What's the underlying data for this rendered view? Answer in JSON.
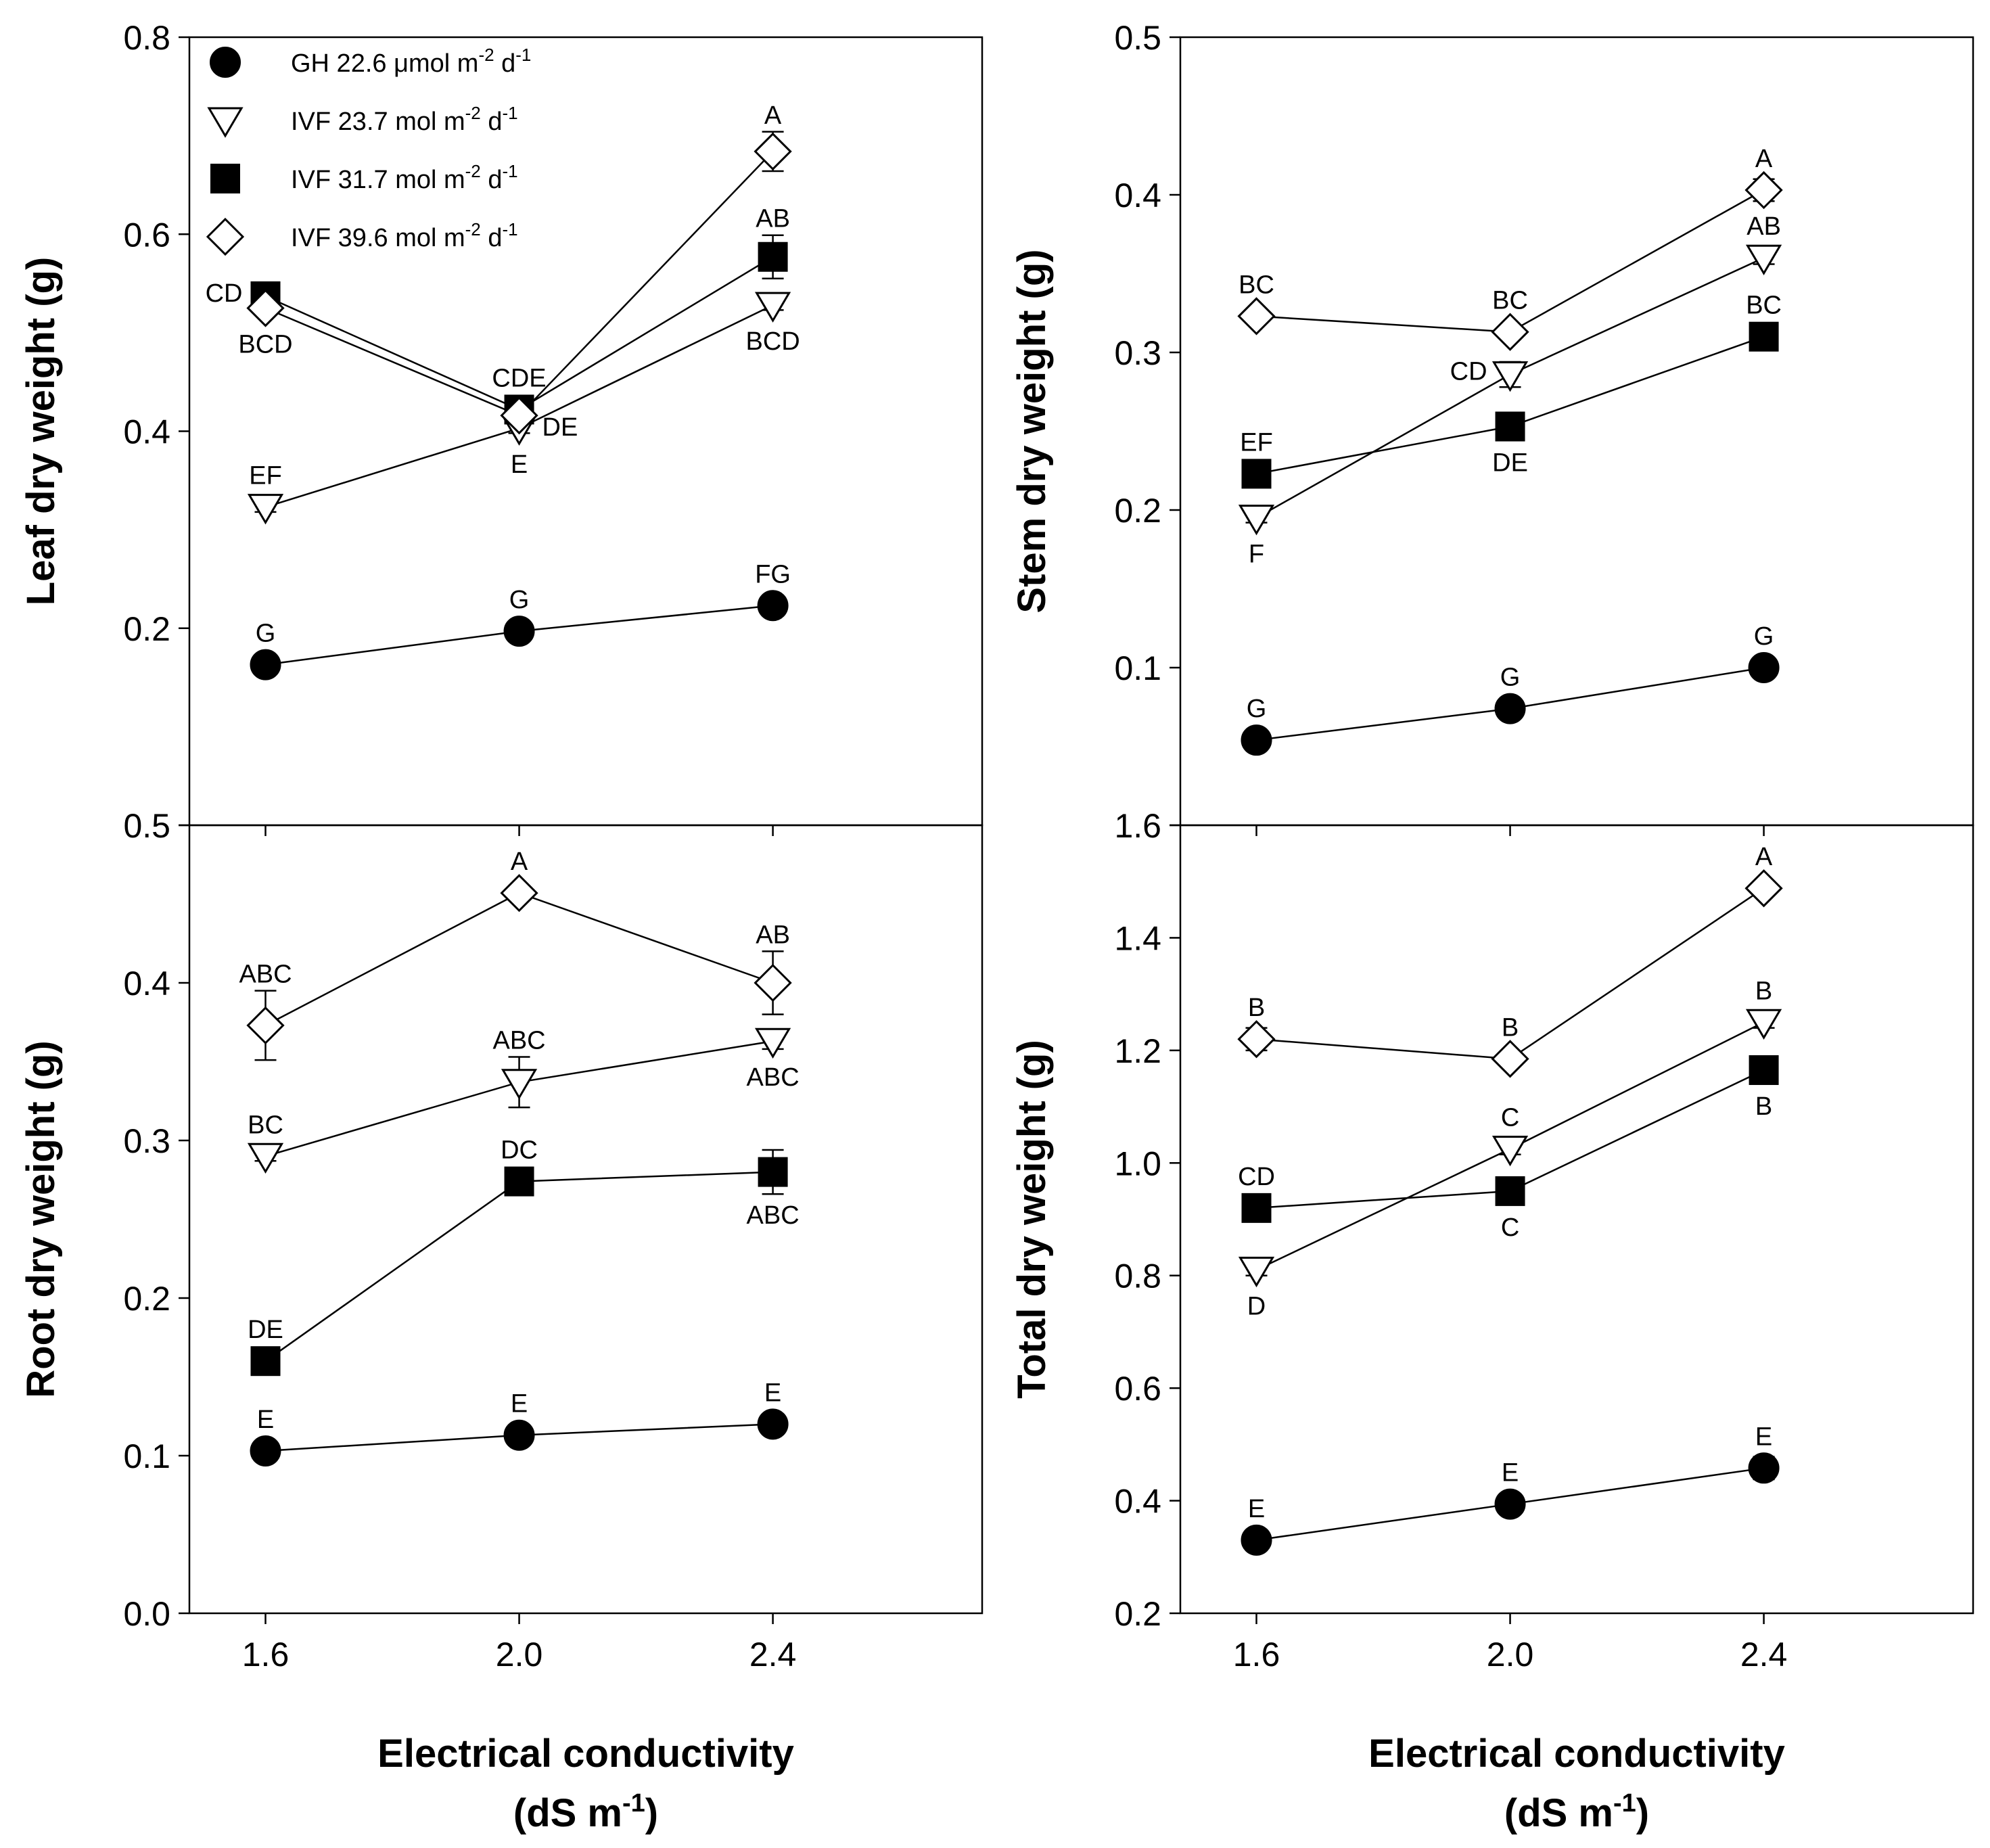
{
  "figure": {
    "xlabel_line1": "Electrical conductivity",
    "xlabel_line2_main": "(dS m",
    "xlabel_line2_sup": "-1",
    "xlabel_line2_end": ")"
  },
  "legend": [
    {
      "series": 0,
      "name": "GH 22.6 µmol m-2 d-1",
      "parts": [
        [
          "GH 22.6 ",
          ""
        ],
        [
          "μ",
          ""
        ],
        [
          "mol m",
          ""
        ],
        [
          "-2",
          "sup"
        ],
        [
          " d",
          ""
        ],
        [
          "-1",
          "sup"
        ]
      ]
    },
    {
      "series": 1,
      "name": "IVF 23.7 mol m-2 d-1",
      "parts": [
        [
          "IVF 23.7 mol m",
          ""
        ],
        [
          "-2",
          "sup"
        ],
        [
          " d",
          ""
        ],
        [
          "-1",
          "sup"
        ]
      ]
    },
    {
      "series": 2,
      "name": "IVF 31.7 mol m-2 d-1",
      "parts": [
        [
          "IVF 31.7 mol m",
          ""
        ],
        [
          "-2",
          "sup"
        ],
        [
          " d",
          ""
        ],
        [
          "-1",
          "sup"
        ]
      ]
    },
    {
      "series": 3,
      "name": "IVF 39.6 mol m-2 d-1",
      "parts": [
        [
          "IVF 39.6 mol m",
          ""
        ],
        [
          "-2",
          "sup"
        ],
        [
          " d",
          ""
        ],
        [
          "-1",
          "sup"
        ]
      ]
    }
  ],
  "chart_data": [
    {
      "type": "line",
      "ylabel": "Leaf dry weight (g)",
      "x": [
        1.6,
        2.0,
        2.4
      ],
      "xticks": [
        "1.6",
        "2.0",
        "2.4"
      ],
      "ylim": [
        0,
        0.8
      ],
      "yticks": [
        "",
        "0.2",
        "0.4",
        "0.6",
        "0.8"
      ],
      "series": [
        {
          "name": "GH 22.6 µmol m-2 d-1",
          "values": [
            0.163,
            0.197,
            0.223
          ],
          "err": [
            0.005,
            0.005,
            0.005
          ],
          "labels": [
            "G",
            "G",
            "FG"
          ],
          "label_pos": [
            "above",
            "above",
            "above"
          ]
        },
        {
          "name": "IVF 23.7 mol m-2 d-1",
          "values": [
            0.323,
            0.403,
            0.528
          ],
          "err": [
            0.005,
            0.005,
            0.005
          ],
          "labels": [
            "EF",
            "E",
            "BCD"
          ],
          "label_pos": [
            "above",
            "below",
            "below"
          ]
        },
        {
          "name": "IVF 31.7 mol m-2 d-1",
          "values": [
            0.537,
            0.422,
            0.577
          ],
          "err": [
            0.005,
            0.005,
            0.022
          ],
          "labels": [
            "CD",
            "CDE",
            "AB"
          ],
          "label_pos": [
            "left",
            "above",
            "above"
          ]
        },
        {
          "name": "IVF 39.6 mol m-2 d-1",
          "values": [
            0.525,
            0.416,
            0.684
          ],
          "err": [
            0.005,
            0.005,
            0.02
          ],
          "labels": [
            "BCD",
            "DE",
            "A"
          ],
          "label_pos": [
            "below",
            "right",
            "above"
          ]
        }
      ]
    },
    {
      "type": "line",
      "ylabel": "Stem dry weight (g)",
      "x": [
        1.6,
        2.0,
        2.4
      ],
      "xticks": [
        "1.6",
        "2.0",
        "2.4"
      ],
      "ylim": [
        0,
        0.5
      ],
      "yticks": [
        "",
        "0.1",
        "0.2",
        "0.3",
        "0.4",
        "0.5"
      ],
      "series": [
        {
          "name": "GH 22.6 µmol m-2 d-1",
          "values": [
            0.054,
            0.074,
            0.1
          ],
          "err": [
            0.003,
            0.003,
            0.003
          ],
          "labels": [
            "G",
            "G",
            "G"
          ],
          "label_pos": [
            "above",
            "above",
            "above"
          ]
        },
        {
          "name": "IVF 23.7 mol m-2 d-1",
          "values": [
            0.195,
            0.286,
            0.36
          ],
          "err": [
            0.003,
            0.008,
            0.004
          ],
          "labels": [
            "F",
            "CD",
            "AB"
          ],
          "label_pos": [
            "below",
            "left",
            "above"
          ]
        },
        {
          "name": "IVF 31.7 mol m-2 d-1",
          "values": [
            0.223,
            0.253,
            0.31
          ],
          "err": [
            0.003,
            0.003,
            0.003
          ],
          "labels": [
            "EF",
            "DE",
            "BC"
          ],
          "label_pos": [
            "above",
            "below",
            "above"
          ]
        },
        {
          "name": "IVF 39.6 mol m-2 d-1",
          "values": [
            0.323,
            0.313,
            0.403
          ],
          "err": [
            0.003,
            0.003,
            0.007
          ],
          "labels": [
            "BC",
            "BC",
            "A"
          ],
          "label_pos": [
            "above",
            "above",
            "above"
          ]
        }
      ]
    },
    {
      "type": "line",
      "ylabel": "Root dry weight (g)",
      "x": [
        1.6,
        2.0,
        2.4
      ],
      "xticks": [
        "1.6",
        "2.0",
        "2.4"
      ],
      "ylim": [
        0,
        0.5
      ],
      "yticks": [
        "0.0",
        "0.1",
        "0.2",
        "0.3",
        "0.4",
        "0.5"
      ],
      "series": [
        {
          "name": "GH 22.6 µmol m-2 d-1",
          "values": [
            0.103,
            0.113,
            0.12
          ],
          "err": [
            0.003,
            0.003,
            0.003
          ],
          "labels": [
            "E",
            "E",
            "E"
          ],
          "label_pos": [
            "above",
            "above",
            "above"
          ]
        },
        {
          "name": "IVF 23.7 mol m-2 d-1",
          "values": [
            0.29,
            0.337,
            0.363
          ],
          "err": [
            0.003,
            0.016,
            0.005
          ],
          "labels": [
            "BC",
            "ABC",
            "ABC"
          ],
          "label_pos": [
            "above",
            "above",
            "below"
          ]
        },
        {
          "name": "IVF 31.7 mol m-2 d-1",
          "values": [
            0.16,
            0.274,
            0.28
          ],
          "err": [
            0.003,
            0.003,
            0.014
          ],
          "labels": [
            "DE",
            "DC",
            "ABC"
          ],
          "label_pos": [
            "above",
            "above",
            "below"
          ]
        },
        {
          "name": "IVF 39.6 mol m-2 d-1",
          "values": [
            0.373,
            0.457,
            0.4
          ],
          "err": [
            0.022,
            0.003,
            0.02
          ],
          "labels": [
            "ABC",
            "A",
            "AB"
          ],
          "label_pos": [
            "above",
            "above",
            "above"
          ]
        }
      ]
    },
    {
      "type": "line",
      "ylabel": "Total dry weight (g)",
      "x": [
        1.6,
        2.0,
        2.4
      ],
      "xticks": [
        "1.6",
        "2.0",
        "2.4"
      ],
      "ylim": [
        0.2,
        1.6
      ],
      "yticks": [
        "0.2",
        "0.4",
        "0.6",
        "0.8",
        "1.0",
        "1.2",
        "1.4",
        "1.6"
      ],
      "series": [
        {
          "name": "GH 22.6 µmol m-2 d-1",
          "values": [
            0.33,
            0.394,
            0.458
          ],
          "err": [
            0.01,
            0.01,
            0.02
          ],
          "labels": [
            "E",
            "E",
            "E"
          ],
          "label_pos": [
            "above",
            "above",
            "above"
          ]
        },
        {
          "name": "IVF 23.7 mol m-2 d-1",
          "values": [
            0.81,
            1.025,
            1.25
          ],
          "err": [
            0.01,
            0.01,
            0.01
          ],
          "labels": [
            "D",
            "C",
            "B"
          ],
          "label_pos": [
            "below",
            "above",
            "above"
          ]
        },
        {
          "name": "IVF 31.7 mol m-2 d-1",
          "values": [
            0.92,
            0.95,
            1.165
          ],
          "err": [
            0.01,
            0.01,
            0.01
          ],
          "labels": [
            "CD",
            "C",
            "B"
          ],
          "label_pos": [
            "above",
            "below",
            "below"
          ]
        },
        {
          "name": "IVF 39.6 mol m-2 d-1",
          "values": [
            1.22,
            1.185,
            1.488
          ],
          "err": [
            0.02,
            0.01,
            0.01
          ],
          "labels": [
            "B",
            "B",
            "A"
          ],
          "label_pos": [
            "above",
            "above",
            "above"
          ]
        }
      ]
    }
  ]
}
